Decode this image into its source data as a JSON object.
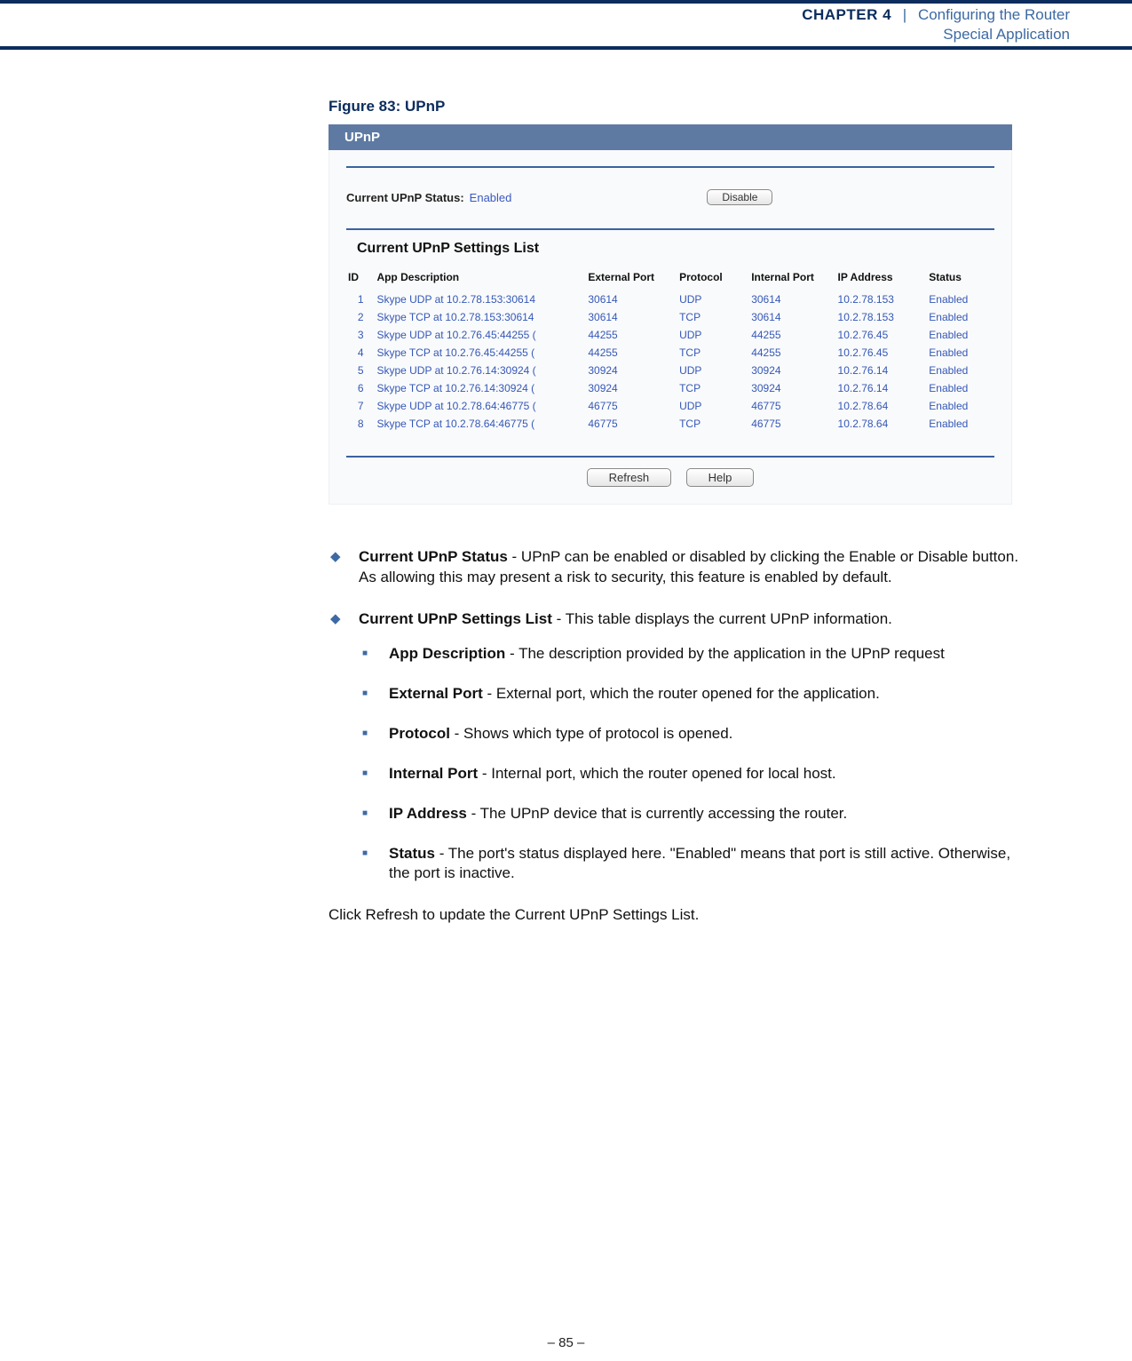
{
  "header": {
    "chapter": "CHAPTER 4",
    "sep": "|",
    "title": "Configuring the Router",
    "subtitle": "Special Application"
  },
  "figure_title": "Figure 83:  UPnP",
  "panel": {
    "title": "UPnP",
    "status_label": "Current UPnP Status:",
    "status_value": "Enabled",
    "disable_btn": "Disable",
    "list_title": "Current UPnP Settings List",
    "columns": [
      "ID",
      "App Description",
      "External Port",
      "Protocol",
      "Internal Port",
      "IP Address",
      "Status"
    ],
    "rows": [
      [
        "1",
        "Skype UDP at 10.2.78.153:30614",
        "30614",
        "UDP",
        "30614",
        "10.2.78.153",
        "Enabled"
      ],
      [
        "2",
        "Skype TCP at 10.2.78.153:30614",
        "30614",
        "TCP",
        "30614",
        "10.2.78.153",
        "Enabled"
      ],
      [
        "3",
        "Skype UDP at 10.2.76.45:44255 (",
        "44255",
        "UDP",
        "44255",
        "10.2.76.45",
        "Enabled"
      ],
      [
        "4",
        "Skype TCP at 10.2.76.45:44255 (",
        "44255",
        "TCP",
        "44255",
        "10.2.76.45",
        "Enabled"
      ],
      [
        "5",
        "Skype UDP at 10.2.76.14:30924 (",
        "30924",
        "UDP",
        "30924",
        "10.2.76.14",
        "Enabled"
      ],
      [
        "6",
        "Skype TCP at 10.2.76.14:30924 (",
        "30924",
        "TCP",
        "30924",
        "10.2.76.14",
        "Enabled"
      ],
      [
        "7",
        "Skype UDP at 10.2.78.64:46775 (",
        "46775",
        "UDP",
        "46775",
        "10.2.78.64",
        "Enabled"
      ],
      [
        "8",
        "Skype TCP at 10.2.78.64:46775 (",
        "46775",
        "TCP",
        "46775",
        "10.2.78.64",
        "Enabled"
      ]
    ],
    "refresh_btn": "Refresh",
    "help_btn": "Help"
  },
  "desc": {
    "d1_b": "Current UPnP Status",
    "d1_t": " - UPnP can be enabled or disabled by clicking the Enable or Disable button. As allowing this may present a risk to security, this feature is enabled by default.",
    "d2_b": "Current UPnP Settings List",
    "d2_t": " - This table displays the current UPnP information.",
    "s1_b": "App Description",
    "s1_t": " - The description provided by the application in the UPnP request",
    "s2_b": "External Port",
    "s2_t": " - External port, which the router opened for the application.",
    "s3_b": "Protocol",
    "s3_t": " - Shows which type of protocol is opened.",
    "s4_b": "Internal Port",
    "s4_t": " - Internal port, which the router opened for local host.",
    "s5_b": "IP Address",
    "s5_t": " - The UPnP device that is currently accessing the router.",
    "s6_b": "Status",
    "s6_t": " - The port's status displayed here. \"Enabled\" means that port is still active. Otherwise, the port is inactive.",
    "tail": "Click Refresh to update the Current UPnP Settings List."
  },
  "footer": "–  85  –"
}
